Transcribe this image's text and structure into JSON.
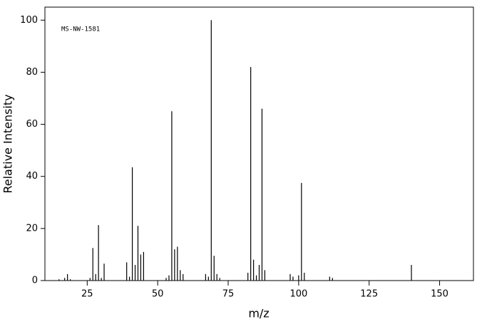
{
  "chart_data": {
    "type": "stem",
    "annotation": "MS-NW-1581",
    "x_label": "m/z",
    "y_label": "Relative Intensity",
    "color": "#000000",
    "xlim": [
      10,
      162
    ],
    "xticks": [
      25,
      50,
      75,
      100,
      125,
      150
    ],
    "ylim": [
      0,
      105
    ],
    "yticks": [
      0,
      20,
      40,
      60,
      80,
      100
    ],
    "x": [
      15,
      17,
      18,
      19,
      26,
      27,
      28,
      29,
      30,
      31,
      39,
      40,
      41,
      42,
      43,
      44,
      45,
      53,
      54,
      55,
      56,
      57,
      58,
      59,
      67,
      68,
      69,
      70,
      71,
      72,
      82,
      83,
      84,
      85,
      86,
      87,
      88,
      97,
      98,
      100,
      101,
      102,
      111,
      112,
      140
    ],
    "values": [
      0.5,
      1,
      2.5,
      0.5,
      1,
      12.5,
      2.5,
      21.3,
      1,
      6.5,
      7,
      1.5,
      43.5,
      6,
      21,
      10,
      11,
      1,
      2,
      65,
      12,
      13,
      4,
      2.5,
      2.5,
      1.5,
      100,
      9.5,
      2.5,
      1,
      3,
      82,
      8,
      2,
      6,
      66,
      4,
      2.5,
      1.5,
      2,
      37.5,
      3,
      1.5,
      1,
      6
    ]
  }
}
